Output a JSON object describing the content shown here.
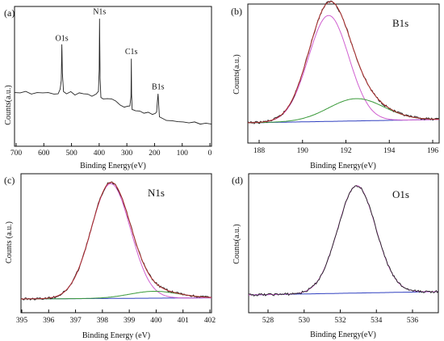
{
  "chart_data": [
    {
      "type": "line",
      "panel": "(a)",
      "xlabel": "Binding Energy(eV)",
      "ylabel": "Counts(a.u.)",
      "xlim": [
        700,
        0
      ],
      "x_reversed": true,
      "xticks": [
        "700",
        "600",
        "500",
        "400",
        "300",
        "200",
        "100",
        "0"
      ],
      "ylim": [
        0,
        100
      ],
      "grid": false,
      "annotations": [
        {
          "text": "O1s",
          "x": 532
        },
        {
          "text": "N1s",
          "x": 398
        },
        {
          "text": "C1s",
          "x": 285
        },
        {
          "text": "B1s",
          "x": 190
        }
      ],
      "series": [
        {
          "color": "#222222",
          "x": [
            700,
            680,
            660,
            640,
            620,
            600,
            580,
            560,
            545,
            538,
            534,
            532,
            530,
            526,
            515,
            500,
            485,
            470,
            455,
            440,
            425,
            410,
            402,
            399,
            398,
            396,
            393,
            385,
            370,
            355,
            340,
            325,
            310,
            298,
            290,
            286,
            285,
            284,
            282,
            278,
            270,
            255,
            240,
            225,
            210,
            200,
            195,
            192,
            190,
            188,
            185,
            175,
            160,
            140,
            120,
            100,
            80,
            60,
            40,
            20,
            0
          ],
          "y": [
            34,
            33,
            35,
            32,
            34,
            33,
            34,
            32,
            33,
            36,
            44,
            73,
            50,
            34,
            33,
            34,
            32,
            33,
            33,
            32,
            31,
            32,
            35,
            52,
            95,
            45,
            30,
            28,
            29,
            28,
            27,
            23,
            22,
            22,
            23,
            30,
            62,
            32,
            20,
            19,
            19,
            18,
            17,
            17,
            16,
            16,
            18,
            27,
            33,
            24,
            14,
            12,
            11,
            10,
            10,
            9,
            9,
            9,
            8,
            8,
            8
          ]
        }
      ]
    },
    {
      "type": "line",
      "panel": "(b)",
      "title": "B1s",
      "xlabel": "Binding Energy(eV)",
      "ylabel": "Counts(a.u.)",
      "xlim": [
        187,
        196
      ],
      "xticks": [
        "188",
        "190",
        "192",
        "194",
        "196"
      ],
      "ylim": [
        0,
        100
      ],
      "grid": false,
      "peaks": [
        {
          "center": 190.8,
          "height": 95,
          "width": 0.95,
          "color": "#d060d0"
        },
        {
          "center": 192.1,
          "height": 20,
          "width": 1.3,
          "color": "#3a9a3a"
        }
      ],
      "background": {
        "from": 0,
        "to": 3,
        "color": "#3040c0"
      },
      "envelope_color": "#b03030",
      "raw_color": "#222222"
    },
    {
      "type": "line",
      "panel": "(c)",
      "title": "N1s",
      "xlabel": "Binding Energy (eV)",
      "ylabel": "Counts (a.u.)",
      "xlim": [
        395,
        402
      ],
      "xticks": [
        "395",
        "396",
        "397",
        "398",
        "399",
        "400",
        "401",
        "402"
      ],
      "ylim": [
        0,
        100
      ],
      "grid": false,
      "peaks": [
        {
          "center": 398.3,
          "height": 100,
          "width": 0.72,
          "color": "#d060d0"
        },
        {
          "center": 399.9,
          "height": 6,
          "width": 0.9,
          "color": "#3a9a3a"
        }
      ],
      "background": {
        "from": 0,
        "to": 1,
        "color": "#3040c0"
      },
      "envelope_color": "#b03030",
      "raw_color": "#222222"
    },
    {
      "type": "line",
      "panel": "(d)",
      "title": "O1s",
      "xlabel": "Binding Energy(eV)",
      "ylabel": "Counts(a.u.)",
      "xlim": [
        527,
        537
      ],
      "xticks": [
        "528",
        "530",
        "532",
        "534",
        "536"
      ],
      "ylim": [
        0,
        100
      ],
      "grid": false,
      "peaks": [
        {
          "center": 532.7,
          "height": 97,
          "width": 1.0,
          "color": "#d060d0"
        }
      ],
      "background": {
        "from": 0,
        "to": 3,
        "color": "#3040c0"
      },
      "envelope_color": "#b03030",
      "raw_color": "#222222"
    }
  ]
}
